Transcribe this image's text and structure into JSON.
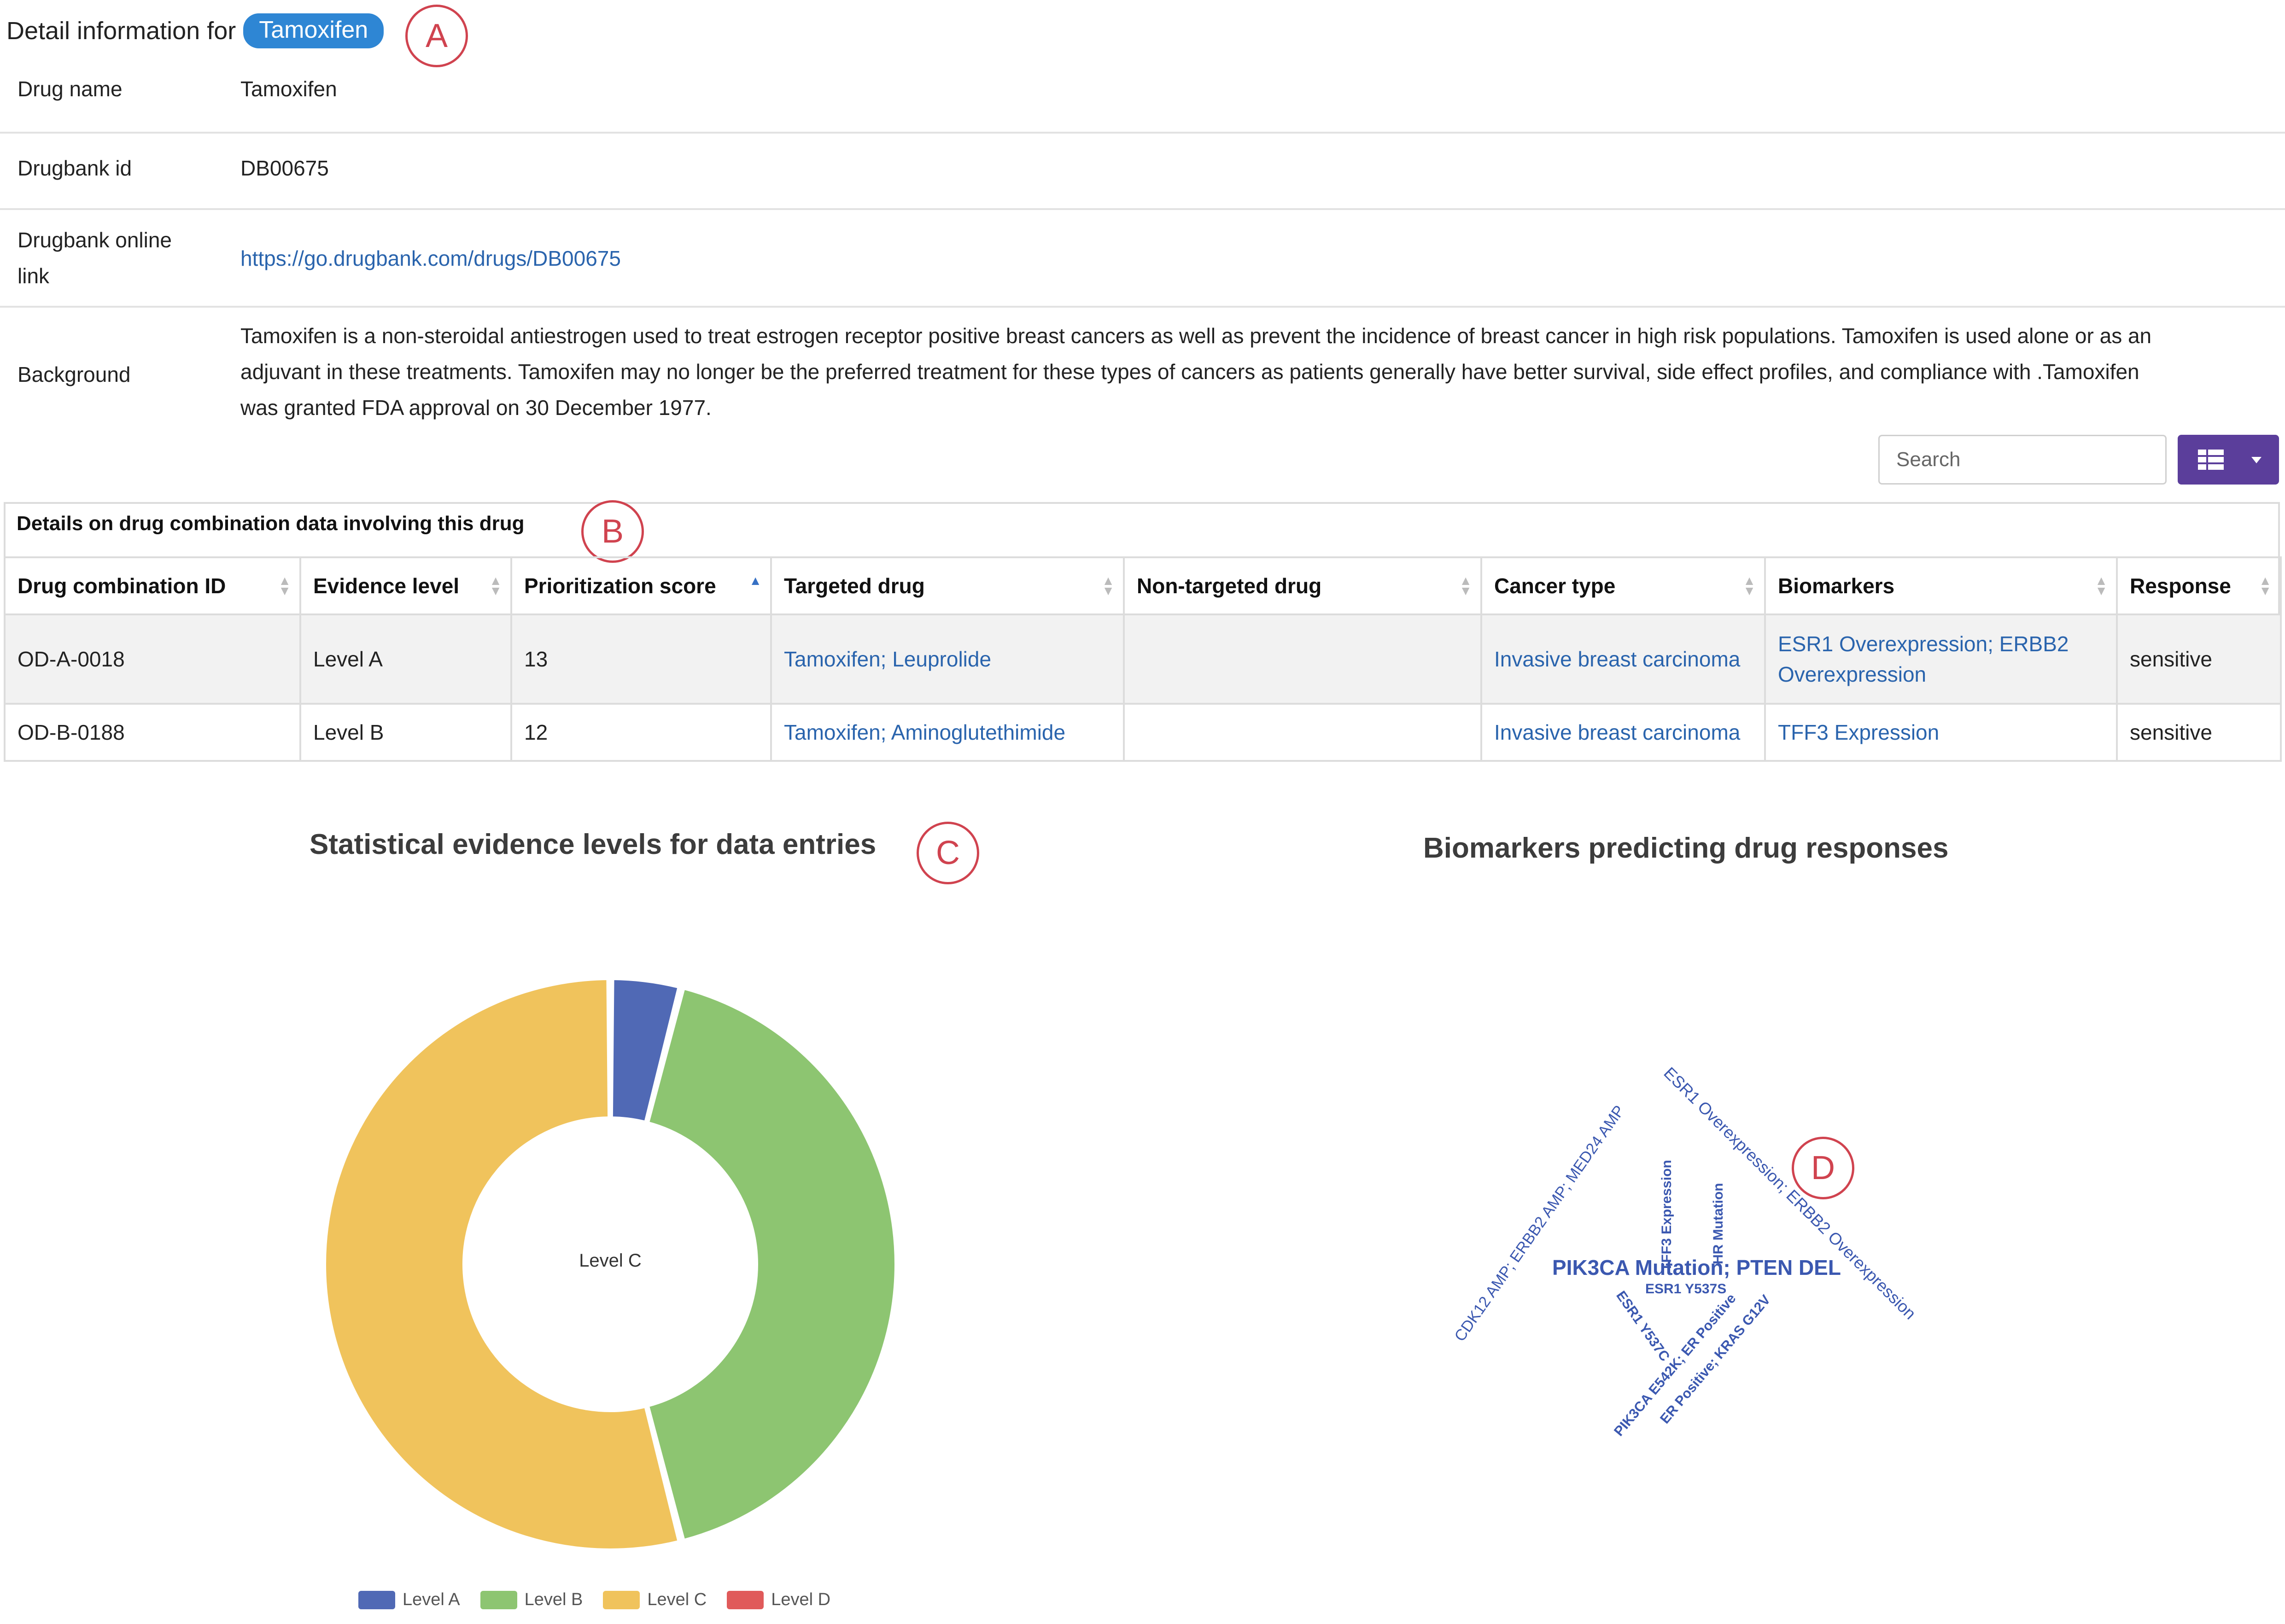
{
  "header": {
    "title_prefix": "Detail information for",
    "drug_pill": "Tamoxifen"
  },
  "annotations": [
    "A",
    "B",
    "C",
    "D"
  ],
  "info": {
    "drug_name_label": "Drug name",
    "drug_name": "Tamoxifen",
    "drugbank_id_label": "Drugbank id",
    "drugbank_id": "DB00675",
    "online_link_label_1": "Drugbank online",
    "online_link_label_2": "link",
    "online_link": "https://go.drugbank.com/drugs/DB00675",
    "background_label": "Background",
    "background_line1": "Tamoxifen is a non-steroidal antiestrogen used to treat estrogen receptor positive breast cancers as well as prevent the incidence of breast cancer in high risk populations. Tamoxifen is used alone or as an",
    "background_line2": "adjuvant in these treatments. Tamoxifen may no longer be the preferred treatment for these types of cancers as patients generally have better survival, side effect profiles, and compliance with .Tamoxifen",
    "background_line3": "was granted FDA approval on 30 December 1977."
  },
  "toolbar": {
    "search_placeholder": "Search"
  },
  "combo": {
    "title": "Details on drug combination data involving this drug",
    "columns": [
      "Drug combination ID",
      "Evidence level",
      "Prioritization score",
      "Targeted drug",
      "Non-targeted drug",
      "Cancer type",
      "Biomarkers",
      "Response"
    ],
    "rows": [
      {
        "id": "OD-A-0018",
        "level": "Level A",
        "score": "13",
        "targeted": "Tamoxifen; Leuprolide",
        "nontargeted": "",
        "cancer": "Invasive breast carcinoma",
        "biomarkers_line1": "ESR1 Overexpression; ERBB2",
        "biomarkers_line2": "Overexpression",
        "response": "sensitive"
      },
      {
        "id": "OD-B-0188",
        "level": "Level B",
        "score": "12",
        "targeted": "Tamoxifen; Aminoglutethimide",
        "nontargeted": "",
        "cancer": "Invasive breast carcinoma",
        "biomarkers_line1": "TFF3 Expression",
        "biomarkers_line2": "",
        "response": "sensitive"
      }
    ]
  },
  "chart_data": [
    {
      "type": "pie",
      "title": "Statistical evidence levels for data entries",
      "center_label": "Level C",
      "categories": [
        "Level A",
        "Level B",
        "Level C",
        "Level D"
      ],
      "values": [
        4,
        42,
        54,
        0
      ],
      "colors": [
        "#5069b5",
        "#8dc571",
        "#f0c35c",
        "#e05a5a"
      ],
      "legend": "bottom"
    },
    {
      "type": "wordcloud",
      "title": "Biomarkers predicting drug responses",
      "words": [
        "ESR1 Overexpression; ERBB2 Overexpression",
        "CDK12 AMP; ERBB2 AMP; MED24 AMP",
        "TFF3 Expression",
        "HR Mutation",
        "PIK3CA Mutation; PTEN DEL",
        "ESR1 Y537S",
        "ESR1 Y537C",
        "PIK3CA E542K; ER Positive",
        "ER Positive; KRAS G12V"
      ],
      "color": "#3b58b0"
    }
  ]
}
